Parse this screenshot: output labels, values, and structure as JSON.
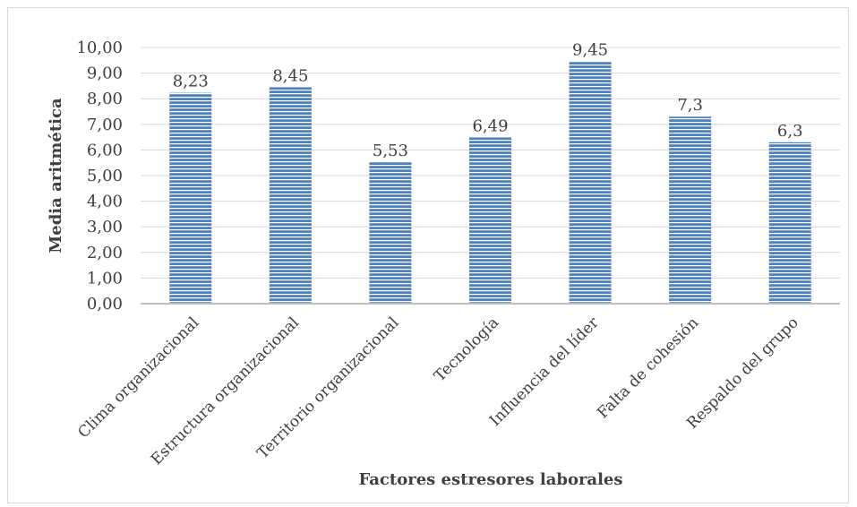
{
  "chart_data": {
    "type": "bar",
    "categories": [
      "Clima organizacional",
      "Estructura organizacional",
      "Territorio organizacional",
      "Tecnología",
      "Influencia del líder",
      "Falta de cohesión",
      "Respaldo del grupo"
    ],
    "values": [
      8.23,
      8.45,
      5.53,
      6.49,
      9.45,
      7.3,
      6.3
    ],
    "data_labels": [
      "8,23",
      "8,45",
      "5,53",
      "6,49",
      "9,45",
      "7,3",
      "6,3"
    ],
    "y_ticks": [
      "0,00",
      "1,00",
      "2,00",
      "3,00",
      "4,00",
      "5,00",
      "6,00",
      "7,00",
      "8,00",
      "9,00",
      "10,00"
    ],
    "xlabel": "Factores estresores laborales",
    "ylabel": "Media aritmética",
    "ylim": [
      0,
      10
    ],
    "grid": true,
    "legend": "none",
    "bar_color": "#4f81bd",
    "bar_stripe_color": "#ffffff"
  }
}
